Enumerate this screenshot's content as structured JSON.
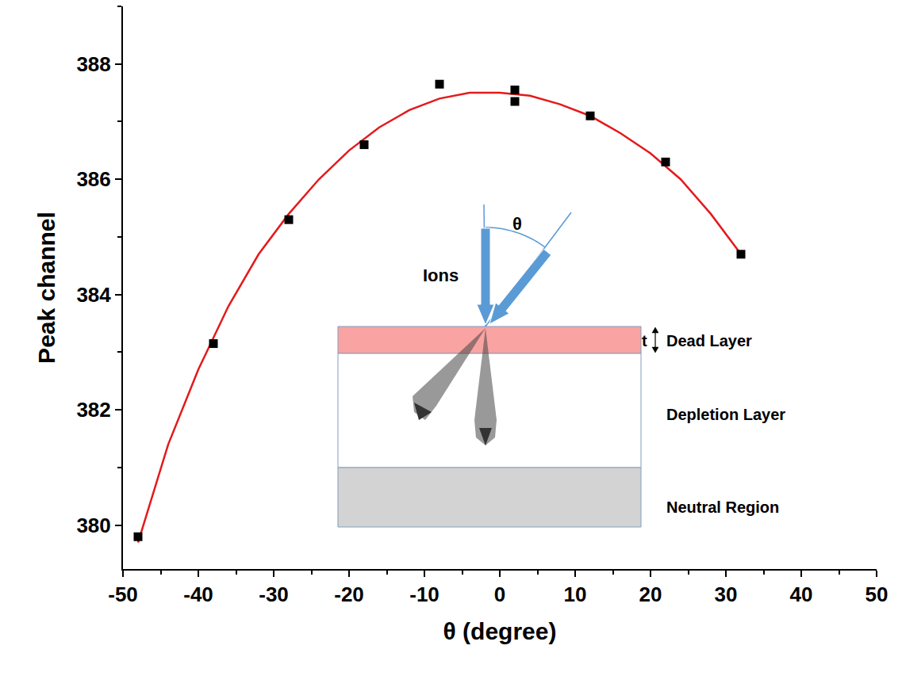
{
  "chart_data": {
    "type": "scatter",
    "x_label": "θ (degree)",
    "y_label": "Peak channel",
    "xlim": [
      -50,
      50
    ],
    "xticks": [
      -50,
      -40,
      -30,
      -20,
      -10,
      0,
      10,
      20,
      30,
      40,
      50
    ],
    "ylim": [
      379.24,
      389.0
    ],
    "yticks": [
      380,
      382,
      384,
      386,
      388
    ],
    "grid": false,
    "series": [
      {
        "type": "line",
        "color": "#e31a1c",
        "line_style": "solid",
        "x": [
          -48,
          -44,
          -40,
          -36,
          -32,
          -28,
          -24,
          -20,
          -16,
          -12,
          -8,
          -4,
          0,
          4,
          8,
          12,
          16,
          20,
          24,
          28,
          32
        ],
        "values": [
          379.7,
          381.4,
          382.7,
          383.8,
          384.7,
          385.4,
          386.0,
          386.5,
          386.9,
          387.2,
          387.4,
          387.5,
          387.5,
          387.45,
          387.3,
          387.1,
          386.8,
          386.45,
          386.0,
          385.4,
          384.7
        ]
      },
      {
        "type": "scatter",
        "color": "#000000",
        "marker": "square",
        "x": [
          -48,
          -38,
          -28,
          -18,
          -8,
          2,
          2,
          12,
          22,
          32
        ],
        "values": [
          379.8,
          383.15,
          385.3,
          386.6,
          387.65,
          387.55,
          387.35,
          387.1,
          386.3,
          384.7
        ]
      }
    ],
    "annotations": [
      "Ions",
      "θ",
      "t",
      "Dead Layer",
      "Depletion Layer",
      "Neutral Region"
    ]
  }
}
